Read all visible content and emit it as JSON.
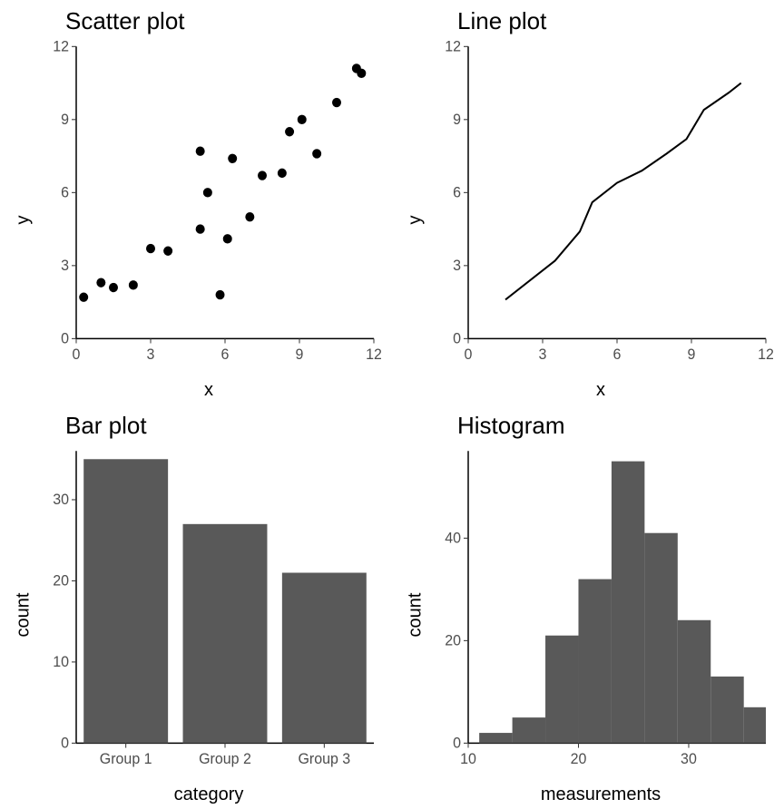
{
  "background_color": "#ffffff",
  "text_color": "#000000",
  "tick_text_color": "#4d4d4d",
  "axis_line_color": "#000000",
  "grid_layout": {
    "rows": 2,
    "cols": 2
  },
  "panels": {
    "scatter": {
      "type": "scatter",
      "title": "Scatter plot",
      "title_fontsize": 26,
      "xlabel": "x",
      "ylabel": "y",
      "label_fontsize": 20,
      "tick_fontsize": 16,
      "xlim": [
        0,
        12
      ],
      "ylim": [
        0,
        12
      ],
      "xticks": [
        0,
        3,
        6,
        9,
        12
      ],
      "yticks": [
        0,
        3,
        6,
        9,
        12
      ],
      "marker_color": "#000000",
      "marker_radius": 5,
      "points": [
        {
          "x": 0.3,
          "y": 1.7
        },
        {
          "x": 1.0,
          "y": 2.3
        },
        {
          "x": 1.5,
          "y": 2.1
        },
        {
          "x": 2.3,
          "y": 2.2
        },
        {
          "x": 3.0,
          "y": 3.7
        },
        {
          "x": 3.7,
          "y": 3.6
        },
        {
          "x": 5.0,
          "y": 7.7
        },
        {
          "x": 5.0,
          "y": 4.5
        },
        {
          "x": 5.3,
          "y": 6.0
        },
        {
          "x": 5.8,
          "y": 1.8
        },
        {
          "x": 6.1,
          "y": 4.1
        },
        {
          "x": 6.3,
          "y": 7.4
        },
        {
          "x": 7.0,
          "y": 5.0
        },
        {
          "x": 7.5,
          "y": 6.7
        },
        {
          "x": 8.3,
          "y": 6.8
        },
        {
          "x": 8.6,
          "y": 8.5
        },
        {
          "x": 9.1,
          "y": 9.0
        },
        {
          "x": 9.7,
          "y": 7.6
        },
        {
          "x": 10.5,
          "y": 9.7
        },
        {
          "x": 11.3,
          "y": 11.1
        },
        {
          "x": 11.5,
          "y": 10.9
        }
      ]
    },
    "line": {
      "type": "line",
      "title": "Line plot",
      "title_fontsize": 26,
      "xlabel": "x",
      "ylabel": "y",
      "label_fontsize": 20,
      "tick_fontsize": 16,
      "xlim": [
        0,
        12
      ],
      "ylim": [
        0,
        12
      ],
      "xticks": [
        0,
        3,
        6,
        9,
        12
      ],
      "yticks": [
        0,
        3,
        6,
        9,
        12
      ],
      "line_color": "#000000",
      "line_width": 2,
      "points": [
        {
          "x": 1.5,
          "y": 1.6
        },
        {
          "x": 2.5,
          "y": 2.4
        },
        {
          "x": 3.5,
          "y": 3.2
        },
        {
          "x": 4.5,
          "y": 4.4
        },
        {
          "x": 5.0,
          "y": 5.6
        },
        {
          "x": 6.0,
          "y": 6.4
        },
        {
          "x": 7.0,
          "y": 6.9
        },
        {
          "x": 8.0,
          "y": 7.6
        },
        {
          "x": 8.8,
          "y": 8.2
        },
        {
          "x": 9.5,
          "y": 9.4
        },
        {
          "x": 10.5,
          "y": 10.1
        },
        {
          "x": 11.0,
          "y": 10.5
        }
      ]
    },
    "bar": {
      "type": "bar",
      "title": "Bar plot",
      "title_fontsize": 26,
      "xlabel": "category",
      "ylabel": "count",
      "label_fontsize": 20,
      "tick_fontsize": 16,
      "ylim": [
        0,
        36
      ],
      "yticks": [
        0,
        10,
        20,
        30
      ],
      "bar_color": "#595959",
      "bar_width": 0.85,
      "categories": [
        "Group 1",
        "Group 2",
        "Group 3"
      ],
      "values": [
        35,
        27,
        21
      ]
    },
    "histogram": {
      "type": "histogram",
      "title": "Histogram",
      "title_fontsize": 26,
      "xlabel": "measurements",
      "ylabel": "count",
      "label_fontsize": 20,
      "tick_fontsize": 16,
      "xlim": [
        10,
        37
      ],
      "ylim": [
        0,
        57
      ],
      "xticks": [
        10,
        20,
        30
      ],
      "yticks": [
        0,
        20,
        40
      ],
      "bar_color": "#595959",
      "bin_width": 3,
      "bins": [
        {
          "start": 11,
          "end": 14,
          "count": 2
        },
        {
          "start": 14,
          "end": 17,
          "count": 5
        },
        {
          "start": 17,
          "end": 20,
          "count": 21
        },
        {
          "start": 20,
          "end": 23,
          "count": 32
        },
        {
          "start": 23,
          "end": 26,
          "count": 55
        },
        {
          "start": 26,
          "end": 29,
          "count": 41
        },
        {
          "start": 29,
          "end": 32,
          "count": 24
        },
        {
          "start": 32,
          "end": 35,
          "count": 13
        },
        {
          "start": 35,
          "end": 37,
          "count": 7
        }
      ]
    }
  }
}
